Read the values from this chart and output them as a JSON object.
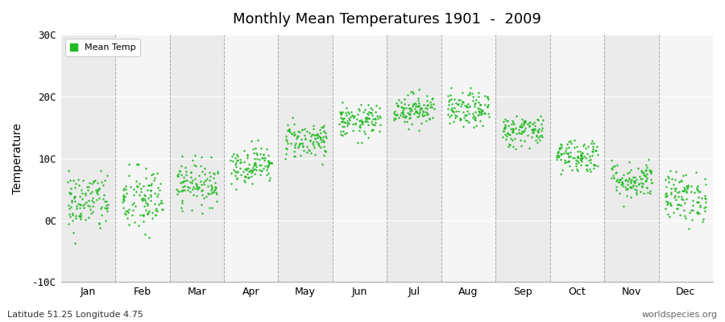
{
  "title": "Monthly Mean Temperatures 1901  -  2009",
  "ylabel": "Temperature",
  "xlabel": "",
  "subtitle_left": "Latitude 51.25 Longitude 4.75",
  "subtitle_right": "worldspecies.org",
  "ylim": [
    -10,
    30
  ],
  "yticks": [
    -10,
    0,
    10,
    20,
    30
  ],
  "ytick_labels": [
    "-10C",
    "0C",
    "10C",
    "20C",
    "30C"
  ],
  "months": [
    "Jan",
    "Feb",
    "Mar",
    "Apr",
    "May",
    "Jun",
    "Jul",
    "Aug",
    "Sep",
    "Oct",
    "Nov",
    "Dec"
  ],
  "monthly_means": [
    3.0,
    3.2,
    6.0,
    9.0,
    13.0,
    16.0,
    18.0,
    17.8,
    14.5,
    10.5,
    6.5,
    3.8
  ],
  "monthly_stds": [
    2.5,
    2.8,
    1.8,
    1.5,
    1.5,
    1.3,
    1.3,
    1.4,
    1.3,
    1.4,
    1.5,
    2.0
  ],
  "monthly_mins": [
    -7.5,
    -7.0,
    -2.0,
    4.5,
    9.0,
    12.5,
    14.5,
    13.5,
    11.0,
    6.5,
    2.0,
    -1.5
  ],
  "monthly_maxs": [
    8.0,
    9.0,
    10.5,
    13.0,
    17.5,
    21.0,
    22.0,
    21.5,
    18.0,
    14.0,
    10.0,
    8.0
  ],
  "dot_color": "#22bb22",
  "dot_size": 3,
  "bg_even": "#ebebeb",
  "bg_odd": "#f5f5f5",
  "grid_color": "#ffffff",
  "vline_color": "#888888",
  "legend_color": "#22bb22",
  "n_years": 109,
  "seed": 42,
  "figsize": [
    9.0,
    4.0
  ],
  "dpi": 100
}
